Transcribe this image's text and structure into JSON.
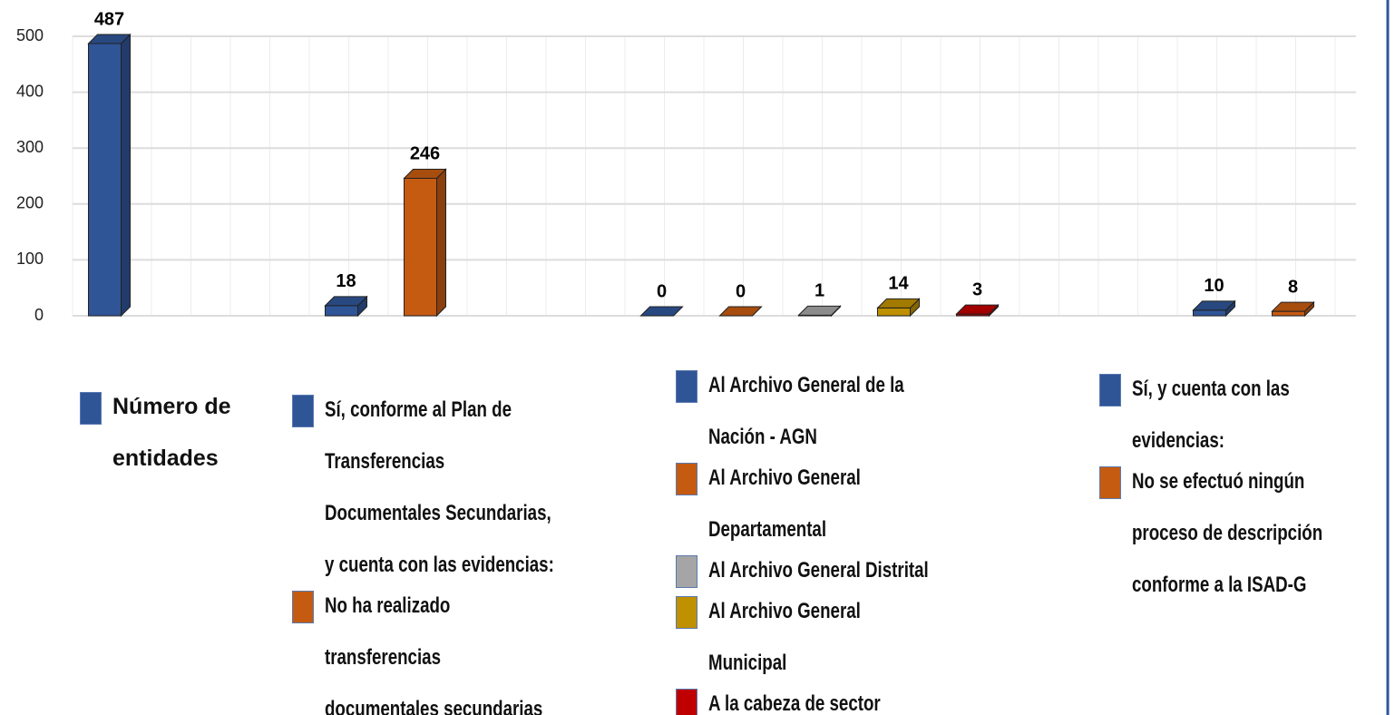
{
  "chart_data": {
    "type": "bar3d",
    "categories": [
      "Número de entidades",
      "Sí, conforme al Plan de Transferencias Documentales Secundarias, y cuenta con las evidencias:",
      "No ha realizado transferencias documentales secundarias",
      "Al Archivo General de la Nación - AGN",
      "Al Archivo General Departamental",
      "Al Archivo General Distrital",
      "Al Archivo General Municipal",
      "A la cabeza de sector",
      "Sí, y cuenta con las evidencias:",
      "No se efectuó ningún proceso de descripción conforme a la ISAD-G"
    ],
    "values": [
      487,
      18,
      246,
      0,
      0,
      1,
      14,
      3,
      10,
      8
    ],
    "colors": [
      "#2f5597",
      "#2f5597",
      "#c55a11",
      "#2f5597",
      "#c55a11",
      "#a5a5a5",
      "#bf9000",
      "#c00000",
      "#2f5597",
      "#c55a11"
    ],
    "ylim": [
      0,
      500
    ],
    "yticks": [
      0,
      100,
      200,
      300,
      400,
      500
    ],
    "grid": true
  }
}
